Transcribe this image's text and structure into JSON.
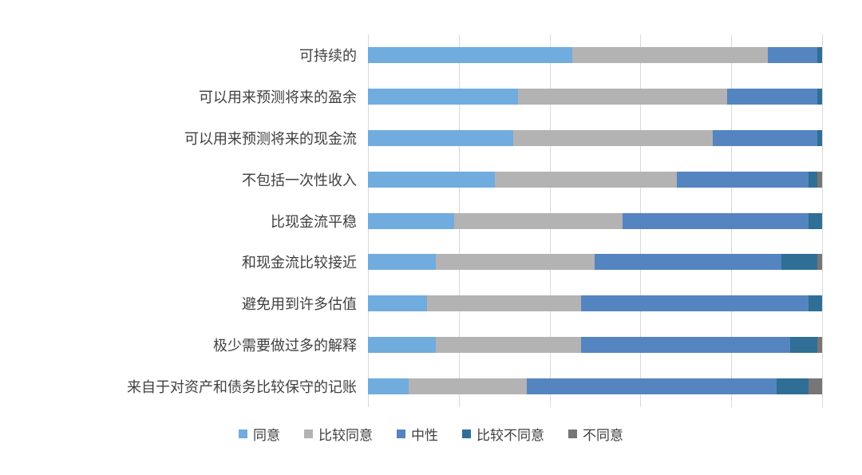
{
  "chart_data": {
    "type": "bar",
    "orientation": "horizontal",
    "stacked": true,
    "stacked_to_100_percent": true,
    "title": "",
    "xlabel": "",
    "ylabel": "",
    "xlim": [
      0,
      100
    ],
    "gridlines_percent": [
      0,
      20,
      40,
      60,
      80,
      100
    ],
    "grid": true,
    "legend_position": "bottom",
    "axis_color": "#d9d9d9",
    "label_color": "#404040",
    "categories": [
      "可持续的",
      "可以用来预测将来的盈余",
      "可以用来预测将来的现金流",
      "不包括一次性收入",
      "比现金流平稳",
      "和现金流比较接近",
      "避免用到许多估值",
      "极少需要做过多的解释",
      "来自于对资产和债务比较保守的记账"
    ],
    "series": [
      {
        "key": "agree",
        "name": "同意",
        "color": "#70acde",
        "values": [
          45,
          33,
          32,
          28,
          19,
          15,
          13,
          15,
          9
        ]
      },
      {
        "key": "somewhat-agree",
        "name": "比较同意",
        "color": "#b3b3b3",
        "values": [
          43,
          46,
          44,
          40,
          37,
          35,
          34,
          32,
          26
        ]
      },
      {
        "key": "neutral",
        "name": "中性",
        "color": "#5585c1",
        "values": [
          11,
          20,
          23,
          29,
          41,
          41,
          50,
          46,
          55
        ]
      },
      {
        "key": "somewhat-disagree",
        "name": "比较不同意",
        "color": "#2f6f95",
        "values": [
          1,
          1,
          1,
          2,
          3,
          8,
          3,
          6,
          7
        ]
      },
      {
        "key": "disagree",
        "name": "不同意",
        "color": "#767676",
        "values": [
          0,
          0,
          0,
          1,
          0,
          1,
          0,
          1,
          3
        ]
      }
    ]
  }
}
